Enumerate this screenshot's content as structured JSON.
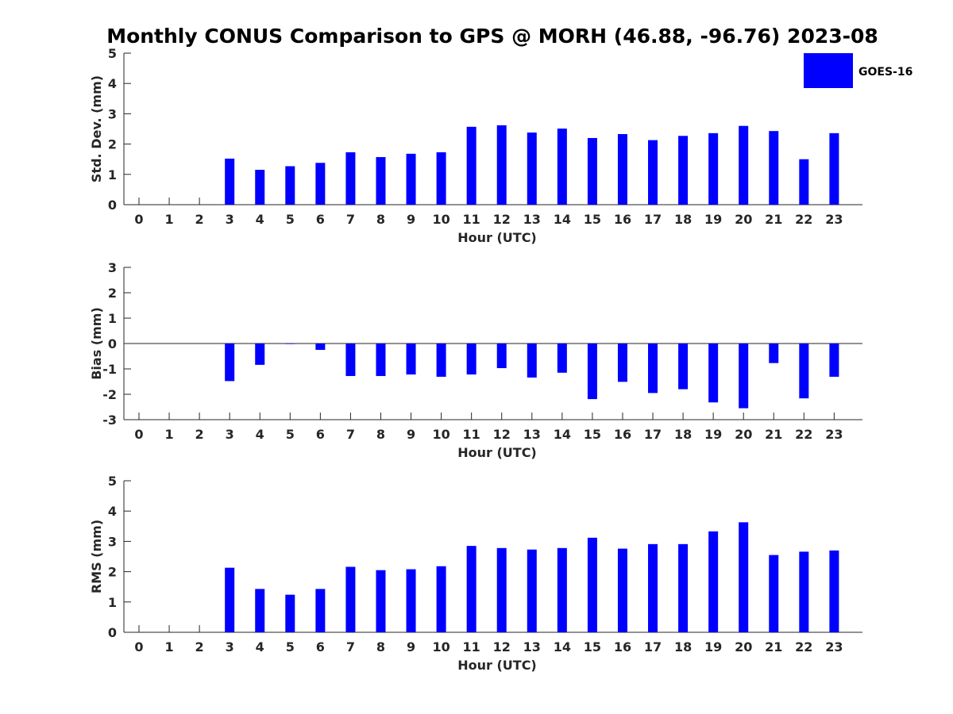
{
  "title": "Monthly CONUS Comparison to GPS @ MORH (46.88, -96.76) 2023-08",
  "legend": {
    "label": "GOES-16",
    "color": "#0000ff",
    "placement": "top-right"
  },
  "chart_data": [
    {
      "type": "bar",
      "xlabel": "Hour (UTC)",
      "ylabel": "Std. Dev. (mm)",
      "categories": [
        "0",
        "1",
        "2",
        "3",
        "4",
        "5",
        "6",
        "7",
        "8",
        "9",
        "10",
        "11",
        "12",
        "13",
        "14",
        "15",
        "16",
        "17",
        "18",
        "19",
        "20",
        "21",
        "22",
        "23"
      ],
      "ylim": [
        0,
        5
      ],
      "yticks": [
        "0",
        "1",
        "2",
        "3",
        "4",
        "5"
      ],
      "series": [
        {
          "name": "GOES-16",
          "values": [
            null,
            null,
            null,
            1.52,
            1.15,
            1.27,
            1.38,
            1.73,
            1.57,
            1.68,
            1.73,
            2.57,
            2.62,
            2.38,
            2.51,
            2.2,
            2.33,
            2.13,
            2.27,
            2.36,
            2.6,
            2.43,
            1.5,
            2.36
          ]
        }
      ],
      "grid": false
    },
    {
      "type": "bar",
      "xlabel": "Hour (UTC)",
      "ylabel": "Bias (mm)",
      "categories": [
        "0",
        "1",
        "2",
        "3",
        "4",
        "5",
        "6",
        "7",
        "8",
        "9",
        "10",
        "11",
        "12",
        "13",
        "14",
        "15",
        "16",
        "17",
        "18",
        "19",
        "20",
        "21",
        "22",
        "23"
      ],
      "ylim": [
        -3,
        3
      ],
      "yticks": [
        "-3",
        "-2",
        "-1",
        "0",
        "1",
        "2",
        "3"
      ],
      "series": [
        {
          "name": "GOES-16",
          "values": [
            null,
            null,
            null,
            -1.48,
            -0.84,
            -0.02,
            -0.25,
            -1.28,
            -1.28,
            -1.22,
            -1.31,
            -1.22,
            -0.97,
            -1.34,
            -1.15,
            -2.19,
            -1.51,
            -1.95,
            -1.8,
            -2.32,
            -2.55,
            -0.77,
            -2.16,
            -1.31
          ]
        }
      ],
      "grid": false
    },
    {
      "type": "bar",
      "xlabel": "Hour (UTC)",
      "ylabel": "RMS (mm)",
      "categories": [
        "0",
        "1",
        "2",
        "3",
        "4",
        "5",
        "6",
        "7",
        "8",
        "9",
        "10",
        "11",
        "12",
        "13",
        "14",
        "15",
        "16",
        "17",
        "18",
        "19",
        "20",
        "21",
        "22",
        "23"
      ],
      "ylim": [
        0,
        5
      ],
      "yticks": [
        "0",
        "1",
        "2",
        "3",
        "4",
        "5"
      ],
      "series": [
        {
          "name": "GOES-16",
          "values": [
            null,
            null,
            null,
            2.13,
            1.43,
            1.24,
            1.43,
            2.16,
            2.05,
            2.08,
            2.18,
            2.85,
            2.78,
            2.73,
            2.78,
            3.12,
            2.76,
            2.91,
            2.91,
            3.33,
            3.63,
            2.55,
            2.66,
            2.7
          ]
        }
      ],
      "grid": false
    }
  ]
}
